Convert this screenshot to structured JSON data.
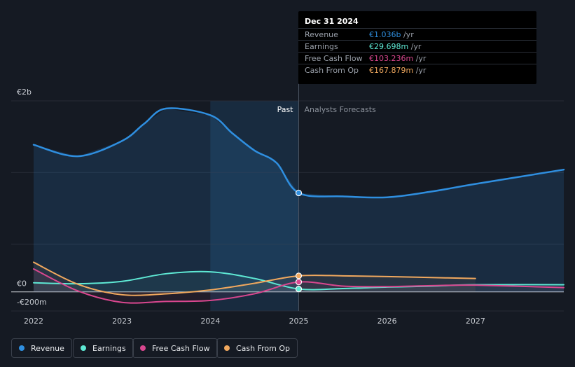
{
  "chart_data": {
    "type": "line",
    "y_axis": {
      "labels": [
        "€2b",
        "€0",
        "-€200m"
      ],
      "ylim": [
        -200,
        2000
      ],
      "unit": "€m"
    },
    "x_axis": {
      "labels": [
        "2022",
        "2023",
        "2024",
        "2025",
        "2026",
        "2027"
      ],
      "xlim": [
        2022,
        2028
      ]
    },
    "divider": {
      "x": 2025,
      "past_label": "Past",
      "forecast_label": "Analysts Forecasts"
    },
    "series": [
      {
        "name": "Revenue",
        "color": "#2f8fe0",
        "points": [
          [
            2022,
            1540
          ],
          [
            2022.5,
            1420
          ],
          [
            2023,
            1580
          ],
          [
            2023.25,
            1760
          ],
          [
            2023.5,
            1920
          ],
          [
            2024,
            1850
          ],
          [
            2024.25,
            1660
          ],
          [
            2024.5,
            1480
          ],
          [
            2024.75,
            1350
          ],
          [
            2025,
            1036
          ],
          [
            2025.5,
            1000
          ],
          [
            2026,
            990
          ],
          [
            2026.5,
            1050
          ],
          [
            2027,
            1130
          ],
          [
            2028,
            1280
          ]
        ]
      },
      {
        "name": "Earnings",
        "color": "#5ee8d4",
        "points": [
          [
            2022,
            95
          ],
          [
            2022.5,
            85
          ],
          [
            2023,
            110
          ],
          [
            2023.5,
            190
          ],
          [
            2024,
            210
          ],
          [
            2024.5,
            140
          ],
          [
            2025,
            30
          ],
          [
            2025.5,
            35
          ],
          [
            2026,
            50
          ],
          [
            2026.5,
            60
          ],
          [
            2027,
            75
          ],
          [
            2028,
            75
          ]
        ]
      },
      {
        "name": "Free Cash Flow",
        "color": "#d9478f",
        "points": [
          [
            2022,
            240
          ],
          [
            2022.5,
            10
          ],
          [
            2023,
            -110
          ],
          [
            2023.5,
            -100
          ],
          [
            2024,
            -90
          ],
          [
            2024.5,
            -20
          ],
          [
            2025,
            103
          ],
          [
            2025.5,
            60
          ],
          [
            2026,
            55
          ],
          [
            2026.5,
            65
          ],
          [
            2027,
            70
          ],
          [
            2028,
            45
          ]
        ]
      },
      {
        "name": "Cash From Op",
        "color": "#f0a85e",
        "points": [
          [
            2022,
            310
          ],
          [
            2022.5,
            80
          ],
          [
            2023,
            -30
          ],
          [
            2023.5,
            -20
          ],
          [
            2024,
            20
          ],
          [
            2024.5,
            90
          ],
          [
            2025,
            168
          ],
          [
            2025.5,
            168
          ],
          [
            2026,
            160
          ],
          [
            2026.5,
            150
          ],
          [
            2027,
            140
          ]
        ]
      }
    ],
    "markers": [
      {
        "series": "Revenue",
        "x": 2025,
        "y": 1036
      },
      {
        "series": "Earnings",
        "x": 2025,
        "y": 30
      },
      {
        "series": "Free Cash Flow",
        "x": 2025,
        "y": 103
      },
      {
        "series": "Cash From Op",
        "x": 2025,
        "y": 168
      }
    ]
  },
  "tooltip": {
    "date": "Dec 31 2024",
    "rows": [
      {
        "label": "Revenue",
        "value": "€1.036b",
        "unit": " /yr",
        "color": "#2f8fe0"
      },
      {
        "label": "Earnings",
        "value": "€29.698m",
        "unit": " /yr",
        "color": "#5ee8d4"
      },
      {
        "label": "Free Cash Flow",
        "value": "€103.236m",
        "unit": " /yr",
        "color": "#d9478f"
      },
      {
        "label": "Cash From Op",
        "value": "€167.879m",
        "unit": " /yr",
        "color": "#f0a85e"
      }
    ]
  },
  "legend": [
    {
      "label": "Revenue",
      "color": "#2f8fe0"
    },
    {
      "label": "Earnings",
      "color": "#5ee8d4"
    },
    {
      "label": "Free Cash Flow",
      "color": "#d9478f"
    },
    {
      "label": "Cash From Op",
      "color": "#f0a85e"
    }
  ],
  "colors": {
    "background": "#151a23",
    "grid": "#2c323d",
    "past_shade": "#1c3a57",
    "axis_text": "#c7cbd1"
  }
}
